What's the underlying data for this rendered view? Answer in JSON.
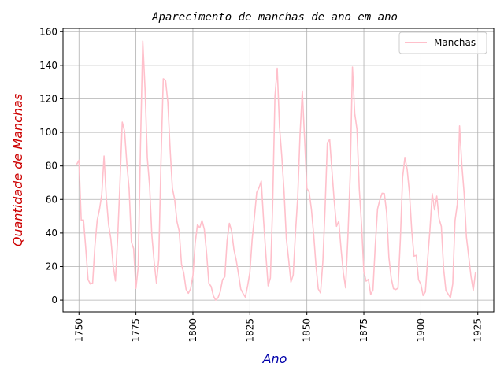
{
  "chart_data": {
    "type": "line",
    "title": "Aparecimento de manchas de ano em ano",
    "xlabel": "Ano",
    "ylabel": "Quantidade de Manchas",
    "xlim": [
      1743,
      1932
    ],
    "ylim": [
      -7,
      162
    ],
    "xticks": [
      1750,
      1775,
      1800,
      1825,
      1850,
      1875,
      1900,
      1925
    ],
    "yticks": [
      0,
      20,
      40,
      60,
      80,
      100,
      120,
      140,
      160
    ],
    "grid": true,
    "legend_position": "top-right",
    "colors": {
      "line": "#ffc0cb",
      "title": "#000000",
      "xlabel": "#0000aa",
      "ylabel": "#cc0000"
    },
    "series": [
      {
        "name": "Manchas",
        "x": [
          1749,
          1750,
          1751,
          1752,
          1753,
          1754,
          1755,
          1756,
          1757,
          1758,
          1759,
          1760,
          1761,
          1762,
          1763,
          1764,
          1765,
          1766,
          1767,
          1768,
          1769,
          1770,
          1771,
          1772,
          1773,
          1774,
          1775,
          1776,
          1777,
          1778,
          1779,
          1780,
          1781,
          1782,
          1783,
          1784,
          1785,
          1786,
          1787,
          1788,
          1789,
          1790,
          1791,
          1792,
          1793,
          1794,
          1795,
          1796,
          1797,
          1798,
          1799,
          1800,
          1801,
          1802,
          1803,
          1804,
          1805,
          1806,
          1807,
          1808,
          1809,
          1810,
          1811,
          1812,
          1813,
          1814,
          1815,
          1816,
          1817,
          1818,
          1819,
          1820,
          1821,
          1822,
          1823,
          1824,
          1825,
          1826,
          1827,
          1828,
          1829,
          1830,
          1831,
          1832,
          1833,
          1834,
          1835,
          1836,
          1837,
          1838,
          1839,
          1840,
          1841,
          1842,
          1843,
          1844,
          1845,
          1846,
          1847,
          1848,
          1849,
          1850,
          1851,
          1852,
          1853,
          1854,
          1855,
          1856,
          1857,
          1858,
          1859,
          1860,
          1861,
          1862,
          1863,
          1864,
          1865,
          1866,
          1867,
          1868,
          1869,
          1870,
          1871,
          1872,
          1873,
          1874,
          1875,
          1876,
          1877,
          1878,
          1879,
          1880,
          1881,
          1882,
          1883,
          1884,
          1885,
          1886,
          1887,
          1888,
          1889,
          1890,
          1891,
          1892,
          1893,
          1894,
          1895,
          1896,
          1897,
          1898,
          1899,
          1900,
          1901,
          1902,
          1903,
          1904,
          1905,
          1906,
          1907,
          1908,
          1909,
          1910,
          1911,
          1912,
          1913,
          1914,
          1915,
          1916,
          1917,
          1918,
          1919,
          1920,
          1921,
          1922,
          1923,
          1924
        ],
        "values": [
          80.9,
          83.4,
          47.7,
          47.8,
          30.7,
          12.2,
          9.6,
          10.2,
          32.4,
          47.6,
          54.0,
          62.9,
          85.9,
          61.2,
          45.1,
          36.4,
          20.9,
          11.4,
          37.8,
          69.8,
          106.1,
          100.8,
          81.6,
          66.5,
          34.8,
          30.6,
          7.0,
          19.8,
          92.5,
          154.4,
          125.9,
          84.8,
          68.1,
          38.5,
          22.8,
          10.2,
          24.1,
          82.9,
          132.0,
          130.9,
          118.1,
          89.9,
          66.6,
          60.0,
          46.9,
          41.0,
          21.3,
          16.0,
          6.4,
          4.1,
          6.8,
          14.5,
          34.0,
          45.0,
          43.1,
          47.5,
          42.2,
          28.1,
          10.1,
          8.1,
          2.5,
          0.0,
          1.4,
          5.0,
          12.2,
          13.9,
          35.4,
          45.8,
          41.1,
          30.1,
          23.9,
          15.6,
          6.6,
          4.0,
          1.8,
          8.5,
          16.6,
          36.3,
          49.6,
          64.2,
          67.0,
          70.9,
          47.8,
          27.5,
          8.5,
          13.2,
          56.9,
          121.5,
          138.3,
          103.2,
          85.7,
          64.6,
          36.7,
          24.2,
          10.7,
          15.0,
          40.1,
          61.5,
          98.5,
          124.7,
          96.3,
          66.6,
          64.5,
          54.1,
          39.0,
          20.6,
          6.7,
          4.3,
          22.7,
          54.8,
          93.8,
          95.8,
          77.2,
          59.1,
          44.0,
          47.0,
          30.5,
          16.3,
          7.3,
          37.6,
          74.0,
          139.0,
          111.2,
          101.6,
          66.2,
          44.7,
          17.0,
          11.3,
          12.4,
          3.4,
          6.0,
          32.3,
          54.3,
          59.7,
          63.7,
          63.5,
          52.2,
          25.4,
          13.1,
          6.8,
          6.3,
          7.1,
          35.6,
          73.0,
          85.1,
          78.0,
          64.0,
          41.8,
          26.2,
          26.7,
          12.1,
          9.5,
          2.7,
          5.0,
          24.4,
          42.0,
          63.5,
          53.8,
          62.0,
          48.5,
          43.9,
          18.6,
          5.7,
          3.6,
          1.4,
          9.6,
          47.4,
          57.1,
          103.9,
          80.6,
          63.6,
          37.6,
          26.1,
          14.2,
          5.8,
          16.7
        ]
      }
    ]
  }
}
